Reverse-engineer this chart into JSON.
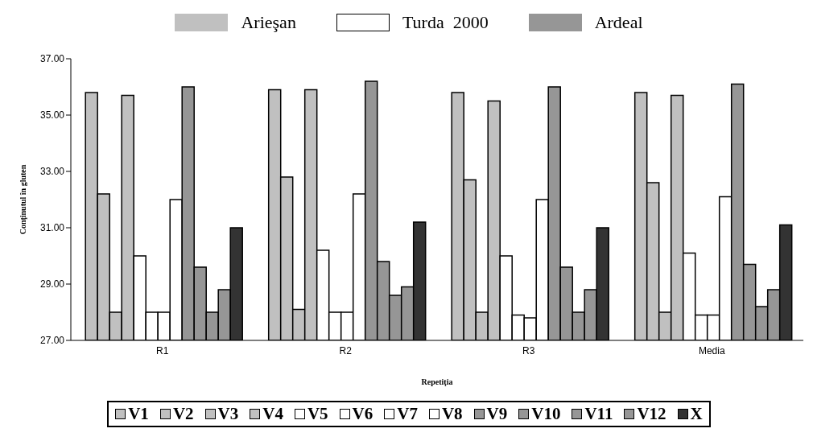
{
  "chart_data": {
    "type": "bar",
    "xlabel": "Repetiţia",
    "ylabel": "Conţinutul în gluten",
    "annotations": [
      "Arieşan",
      "Turda  2000",
      "Ardeal"
    ],
    "categories": [
      "R1",
      "R2",
      "R3",
      "Media"
    ],
    "series": [
      {
        "name": "V1",
        "color": "#c0c0c0",
        "values": [
          35.8,
          35.9,
          35.8,
          35.8
        ]
      },
      {
        "name": "V2",
        "color": "#c0c0c0",
        "values": [
          32.2,
          32.8,
          32.7,
          32.6
        ]
      },
      {
        "name": "V3",
        "color": "#c0c0c0",
        "values": [
          28.0,
          28.1,
          28.0,
          28.0
        ]
      },
      {
        "name": "V4",
        "color": "#c0c0c0",
        "values": [
          35.7,
          35.9,
          35.5,
          35.7
        ]
      },
      {
        "name": "V5",
        "color": "#ffffff",
        "values": [
          30.0,
          30.2,
          30.0,
          30.1
        ]
      },
      {
        "name": "V6",
        "color": "#ffffff",
        "values": [
          28.0,
          28.0,
          27.9,
          27.9
        ]
      },
      {
        "name": "V7",
        "color": "#ffffff",
        "values": [
          28.0,
          28.0,
          27.8,
          27.9
        ]
      },
      {
        "name": "V8",
        "color": "#ffffff",
        "values": [
          32.0,
          32.2,
          32.0,
          32.1
        ]
      },
      {
        "name": "V9",
        "color": "#969696",
        "values": [
          36.0,
          36.2,
          36.0,
          36.1
        ]
      },
      {
        "name": "V10",
        "color": "#969696",
        "values": [
          29.6,
          29.8,
          29.6,
          29.7
        ]
      },
      {
        "name": "V11",
        "color": "#969696",
        "values": [
          28.0,
          28.6,
          28.0,
          28.2
        ]
      },
      {
        "name": "V12",
        "color": "#969696",
        "values": [
          28.8,
          28.9,
          28.8,
          28.8
        ]
      },
      {
        "name": "X",
        "color": "#333333",
        "values": [
          31.0,
          31.2,
          31.0,
          31.1
        ]
      }
    ],
    "ylim": [
      27,
      37
    ],
    "yticks": [
      {
        "value": 27,
        "label": "27.00"
      },
      {
        "value": 29,
        "label": "29.00"
      },
      {
        "value": 31,
        "label": "31.00"
      },
      {
        "value": 33,
        "label": "33.00"
      },
      {
        "value": 35,
        "label": "35.00"
      },
      {
        "value": 37,
        "label": "37.00"
      }
    ],
    "grid": false,
    "legend": "bottom"
  }
}
